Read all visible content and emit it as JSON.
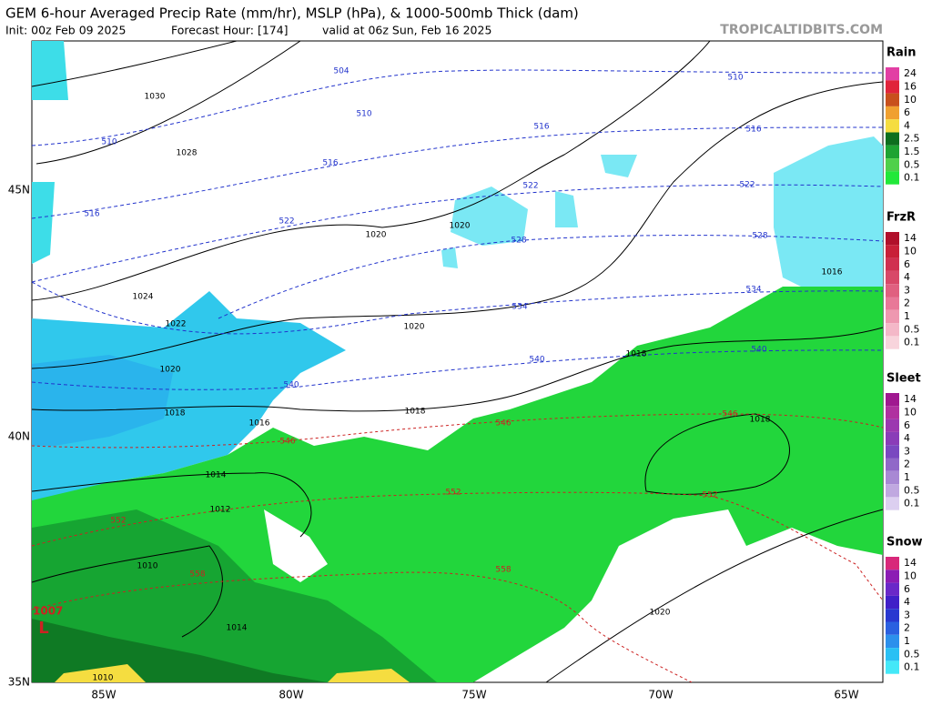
{
  "header": {
    "title": "GEM 6-hour Averaged Precip Rate (mm/hr), MSLP (hPa), & 1000-500mb Thick (dam)",
    "init": "Init: 00z Feb 09 2025",
    "forecast_hour": "Forecast Hour: [174]",
    "valid": "valid at 06z Sun, Feb 16 2025",
    "credit": "TROPICALTIDBITS.COM"
  },
  "axes": {
    "lon_labels": [
      "85W",
      "80W",
      "75W",
      "70W",
      "65W"
    ],
    "lat_labels": [
      "45N",
      "40N",
      "35N"
    ]
  },
  "legends": [
    {
      "title": "Rain",
      "labels": [
        "24",
        "16",
        "10",
        "6",
        "4",
        "2.5",
        "1.5",
        "0.5",
        "0.1"
      ],
      "colors": [
        "#e23fa4",
        "#e0243a",
        "#c8501c",
        "#f0a030",
        "#f5dd40",
        "#0d6e1e",
        "#1ea332",
        "#4fd04a",
        "#22e83a"
      ]
    },
    {
      "title": "FrzR",
      "labels": [
        "14",
        "10",
        "6",
        "4",
        "3",
        "2",
        "1",
        "0.5",
        "0.1"
      ],
      "colors": [
        "#b0102a",
        "#c82038",
        "#d03050",
        "#d84868",
        "#e06080",
        "#e87898",
        "#ee98b0",
        "#f4b8c8",
        "#f8d4dc"
      ]
    },
    {
      "title": "Sleet",
      "labels": [
        "14",
        "10",
        "6",
        "4",
        "3",
        "2",
        "1",
        "0.5",
        "0.1"
      ],
      "colors": [
        "#a01890",
        "#b030a0",
        "#9c38b0",
        "#8a3cb8",
        "#7a48c0",
        "#9068c8",
        "#a888d4",
        "#c0a8e0",
        "#dccff0"
      ]
    },
    {
      "title": "Snow",
      "labels": [
        "14",
        "10",
        "6",
        "4",
        "3",
        "2",
        "1",
        "0.5",
        "0.1"
      ],
      "colors": [
        "#d8287a",
        "#8c1cb4",
        "#6a28c8",
        "#4020c8",
        "#2838d0",
        "#2a60e0",
        "#2c90ec",
        "#2ac0f4",
        "#44e8f8"
      ]
    }
  ],
  "map": {
    "pressure_labels": [
      "1030",
      "1028",
      "1024",
      "1022",
      "1020",
      "1018",
      "1016",
      "1014",
      "1012",
      "1010",
      "1014",
      "1010",
      "1020",
      "1020",
      "1020",
      "1018",
      "1016",
      "1018",
      "1018",
      "1020"
    ],
    "thickness_labels": [
      "504",
      "510",
      "510",
      "516",
      "516",
      "522",
      "516",
      "510",
      "516",
      "522",
      "522",
      "528",
      "528",
      "534",
      "534",
      "540",
      "540",
      "540",
      "546",
      "546",
      "546",
      "552",
      "552",
      "552",
      "558",
      "558"
    ],
    "low_pressure": "1007",
    "low_symbol": "L"
  }
}
